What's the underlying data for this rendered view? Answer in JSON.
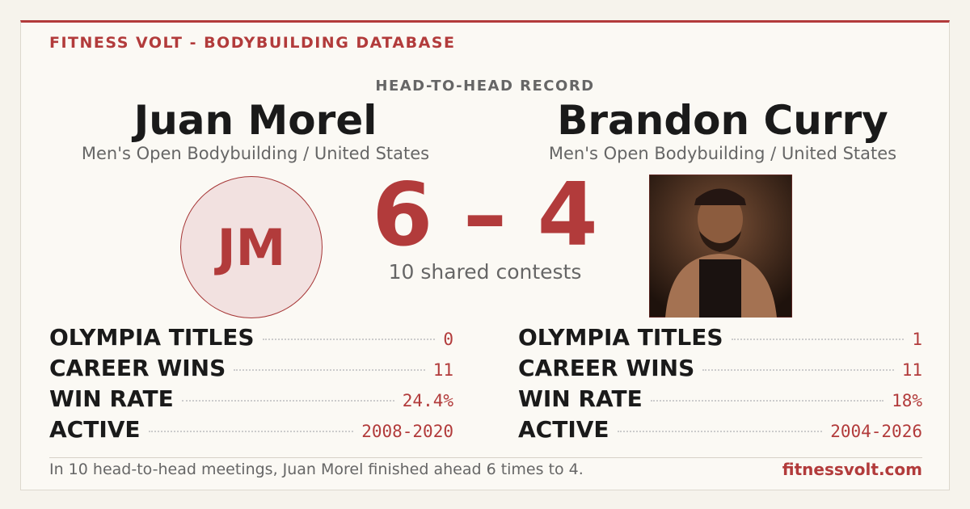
{
  "header": {
    "brand": "FITNESS VOLT - BODYBUILDING DATABASE"
  },
  "record": {
    "label": "HEAD-TO-HEAD RECORD",
    "score": "6 – 4",
    "shared": "10 shared contests"
  },
  "athletes": [
    {
      "name": "Juan Morel",
      "division": "Men's Open Bodybuilding / United States",
      "initials": "JM",
      "stats": [
        {
          "label": "OLYMPIA TITLES",
          "value": "0"
        },
        {
          "label": "CAREER WINS",
          "value": "11"
        },
        {
          "label": "WIN RATE",
          "value": "24.4%"
        },
        {
          "label": "ACTIVE",
          "value": "2008-2020"
        }
      ]
    },
    {
      "name": "Brandon Curry",
      "division": "Men's Open Bodybuilding / United States",
      "stats": [
        {
          "label": "OLYMPIA TITLES",
          "value": "1"
        },
        {
          "label": "CAREER WINS",
          "value": "11"
        },
        {
          "label": "WIN RATE",
          "value": "18%"
        },
        {
          "label": "ACTIVE",
          "value": "2004-2026"
        }
      ]
    }
  ],
  "footer": {
    "summary": "In 10 head-to-head meetings, Juan Morel finished ahead 6 times to 4.",
    "site": "fitnessvolt.com"
  }
}
